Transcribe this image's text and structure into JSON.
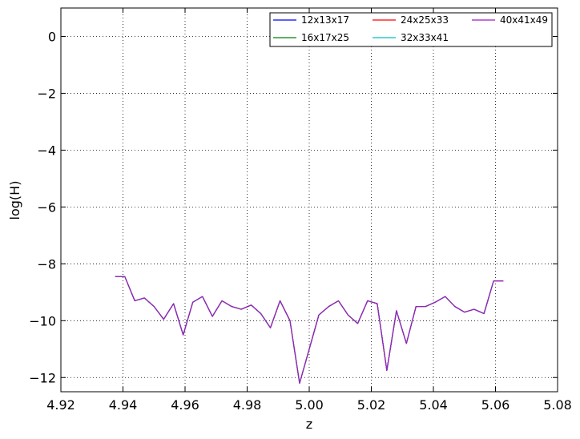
{
  "chart_data": {
    "type": "line",
    "title": "",
    "xlabel": "z",
    "ylabel": "log(H)",
    "xlim": [
      4.92,
      5.08
    ],
    "ylim": [
      -12.5,
      1.0
    ],
    "grid": true,
    "legend_position": "top-right",
    "x_ticks": [
      4.92,
      4.94,
      4.96,
      4.98,
      5.0,
      5.02,
      5.04,
      5.06,
      5.08
    ],
    "x_tick_labels": [
      "4.92",
      "4.94",
      "4.96",
      "4.98",
      "5.00",
      "5.02",
      "5.04",
      "5.06",
      "5.08"
    ],
    "y_ticks": [
      0,
      -2,
      -4,
      -6,
      -8,
      -10,
      -12
    ],
    "y_tick_labels": [
      "0",
      "−2",
      "−4",
      "−6",
      "−8",
      "−10",
      "−12"
    ],
    "x": [
      4.9375,
      4.9406,
      4.9438,
      4.9469,
      4.95,
      4.9531,
      4.9563,
      4.9594,
      4.9625,
      4.9656,
      4.9688,
      4.9719,
      4.975,
      4.9781,
      4.9813,
      4.9844,
      4.9875,
      4.9906,
      4.9938,
      4.9969,
      5.0,
      5.0031,
      5.0063,
      5.0094,
      5.0125,
      5.0156,
      5.0188,
      5.0219,
      5.025,
      5.0281,
      5.0313,
      5.0344,
      5.0375,
      5.0406,
      5.0438,
      5.0469,
      5.05,
      5.0531,
      5.0563,
      5.0594,
      5.0625
    ],
    "series": [
      {
        "name": "12x13x17",
        "color": "#0000ff",
        "values": [
          -8.45,
          -8.45,
          -9.3,
          -9.2,
          -9.5,
          -9.95,
          -9.4,
          -10.5,
          -9.35,
          -9.15,
          -9.85,
          -9.3,
          -9.5,
          -9.6,
          -9.45,
          -9.75,
          -10.25,
          -9.3,
          -10.0,
          -12.2,
          -11.0,
          -9.8,
          -9.5,
          -9.3,
          -9.8,
          -10.1,
          -9.3,
          -9.4,
          -11.75,
          -9.65,
          -10.8,
          -9.5,
          -9.5,
          -9.35,
          -9.15,
          -9.5,
          -9.7,
          -9.6,
          -9.75,
          -8.6,
          -8.6
        ]
      },
      {
        "name": "16x17x25",
        "color": "#008000",
        "values": [
          -8.45,
          -8.45,
          -9.3,
          -9.2,
          -9.5,
          -9.95,
          -9.4,
          -10.5,
          -9.35,
          -9.15,
          -9.85,
          -9.3,
          -9.5,
          -9.6,
          -9.45,
          -9.75,
          -10.25,
          -9.3,
          -10.0,
          -12.2,
          -11.0,
          -9.8,
          -9.5,
          -9.3,
          -9.8,
          -10.1,
          -9.3,
          -9.4,
          -11.75,
          -9.65,
          -10.8,
          -9.5,
          -9.5,
          -9.35,
          -9.15,
          -9.5,
          -9.7,
          -9.6,
          -9.75,
          -8.6,
          -8.6
        ]
      },
      {
        "name": "24x25x33",
        "color": "#ff0000",
        "values": [
          -8.45,
          -8.45,
          -9.3,
          -9.2,
          -9.5,
          -9.95,
          -9.4,
          -10.5,
          -9.35,
          -9.15,
          -9.85,
          -9.3,
          -9.5,
          -9.6,
          -9.45,
          -9.75,
          -10.25,
          -9.3,
          -10.0,
          -12.2,
          -11.0,
          -9.8,
          -9.5,
          -9.3,
          -9.8,
          -10.1,
          -9.3,
          -9.4,
          -11.75,
          -9.65,
          -10.8,
          -9.5,
          -9.5,
          -9.35,
          -9.15,
          -9.5,
          -9.7,
          -9.6,
          -9.75,
          -8.6,
          -8.6
        ]
      },
      {
        "name": "32x33x41",
        "color": "#00bfbf",
        "values": [
          -8.45,
          -8.45,
          -9.3,
          -9.2,
          -9.5,
          -9.95,
          -9.4,
          -10.5,
          -9.35,
          -9.15,
          -9.85,
          -9.3,
          -9.5,
          -9.6,
          -9.45,
          -9.75,
          -10.25,
          -9.3,
          -10.0,
          -12.2,
          -11.0,
          -9.8,
          -9.5,
          -9.3,
          -9.8,
          -10.1,
          -9.3,
          -9.4,
          -11.75,
          -9.65,
          -10.8,
          -9.5,
          -9.5,
          -9.35,
          -9.15,
          -9.5,
          -9.7,
          -9.6,
          -9.75,
          -8.6,
          -8.6
        ]
      },
      {
        "name": "40x41x49",
        "color": "#9e1fbf",
        "values": [
          -8.45,
          -8.45,
          -9.3,
          -9.2,
          -9.5,
          -9.95,
          -9.4,
          -10.5,
          -9.35,
          -9.15,
          -9.85,
          -9.3,
          -9.5,
          -9.6,
          -9.45,
          -9.75,
          -10.25,
          -9.3,
          -10.0,
          -12.2,
          -11.0,
          -9.8,
          -9.5,
          -9.3,
          -9.8,
          -10.1,
          -9.3,
          -9.4,
          -11.75,
          -9.65,
          -10.8,
          -9.5,
          -9.5,
          -9.35,
          -9.15,
          -9.5,
          -9.7,
          -9.6,
          -9.75,
          -8.6,
          -8.6
        ]
      }
    ]
  }
}
